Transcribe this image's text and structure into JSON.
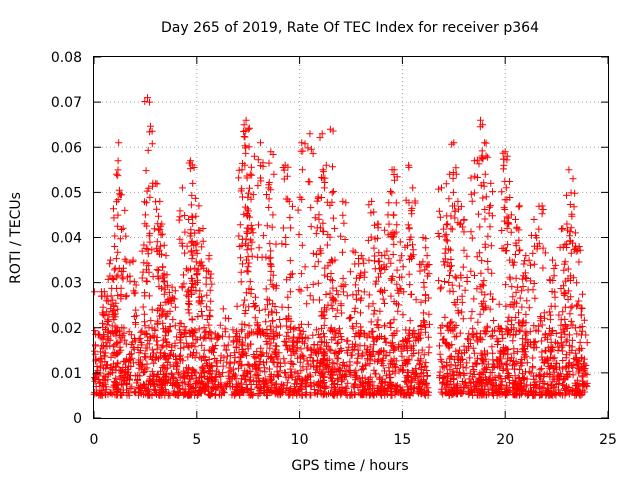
{
  "chart_data": {
    "type": "scatter",
    "title": "Day 265 of 2019, Rate Of TEC Index for receiver p364",
    "xlabel": "GPS time / hours",
    "ylabel": "ROTI / TECUs",
    "xlim": [
      0,
      25
    ],
    "ylim": [
      0,
      0.08
    ],
    "x_ticks": [
      "0",
      "5",
      "10",
      "15",
      "20",
      "25"
    ],
    "y_ticks": [
      "0",
      "0.01",
      "0.02",
      "0.03",
      "0.04",
      "0.05",
      "0.06",
      "0.07",
      "0.08"
    ],
    "marker": "plus",
    "grid": true,
    "series": [
      {
        "name": "ROTI",
        "color": "#ff0000",
        "baseline_band": [
          0.005,
          0.02
        ],
        "gaps": [
          [
            16.3,
            16.8
          ]
        ],
        "x": [
          0.5,
          0.8,
          1.0,
          1.1,
          1.2,
          1.5,
          1.9,
          2.5,
          2.6,
          2.7,
          3.0,
          3.2,
          3.3,
          3.5,
          3.8,
          4.3,
          4.6,
          4.7,
          4.8,
          4.9,
          5.1,
          5.3,
          5.6,
          7.2,
          7.3,
          7.4,
          7.5,
          7.6,
          7.8,
          8.1,
          8.5,
          8.6,
          8.7,
          9.3,
          9.5,
          10.1,
          10.5,
          10.9,
          11.1,
          11.3,
          11.5,
          11.7,
          12.1,
          12.6,
          13.0,
          13.5,
          13.8,
          14.0,
          14.3,
          14.5,
          14.6,
          14.9,
          15.3,
          15.5,
          16.0,
          16.2,
          16.9,
          17.2,
          17.3,
          17.5,
          17.7,
          18.0,
          18.5,
          18.8,
          18.9,
          19.0,
          19.3,
          20.0,
          20.1,
          20.3,
          20.5,
          20.7,
          21.0,
          21.4,
          21.8,
          22.3,
          22.8,
          23.0,
          23.1,
          23.3,
          23.6
        ],
        "y": [
          0.028,
          0.035,
          0.038,
          0.054,
          0.061,
          0.046,
          0.035,
          0.045,
          0.071,
          0.07,
          0.052,
          0.048,
          0.043,
          0.036,
          0.029,
          0.051,
          0.044,
          0.057,
          0.052,
          0.041,
          0.047,
          0.042,
          0.036,
          0.055,
          0.065,
          0.066,
          0.064,
          0.054,
          0.058,
          0.061,
          0.051,
          0.059,
          0.045,
          0.056,
          0.048,
          0.061,
          0.063,
          0.049,
          0.063,
          0.056,
          0.064,
          0.042,
          0.048,
          0.037,
          0.036,
          0.048,
          0.043,
          0.036,
          0.045,
          0.055,
          0.055,
          0.039,
          0.056,
          0.051,
          0.04,
          0.036,
          0.051,
          0.043,
          0.054,
          0.061,
          0.048,
          0.044,
          0.057,
          0.066,
          0.065,
          0.061,
          0.052,
          0.059,
          0.058,
          0.045,
          0.044,
          0.047,
          0.036,
          0.044,
          0.047,
          0.035,
          0.042,
          0.043,
          0.055,
          0.053,
          0.038
        ]
      }
    ]
  }
}
